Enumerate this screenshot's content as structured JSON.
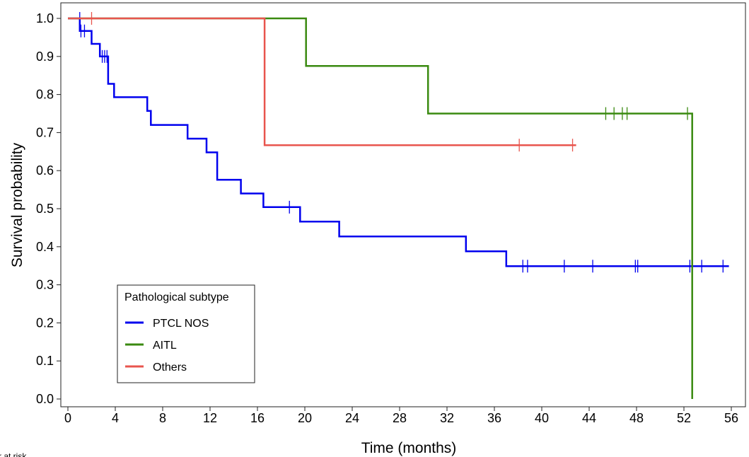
{
  "chart_data": {
    "type": "line",
    "subtype": "kaplan-meier",
    "title": "",
    "xlabel": "Time (months)",
    "ylabel": "Survival probability",
    "xlim": [
      0,
      56
    ],
    "ylim": [
      0,
      1
    ],
    "xticks": [
      "0",
      "4",
      "8",
      "12",
      "16",
      "20",
      "24",
      "28",
      "32",
      "36",
      "40",
      "44",
      "48",
      "52",
      "56"
    ],
    "yticks": [
      "0.0",
      "0.1",
      "0.2",
      "0.3",
      "0.4",
      "0.5",
      "0.6",
      "0.7",
      "0.8",
      "0.9",
      "1.0"
    ],
    "grid": false,
    "legend": {
      "title": "Pathological subtype",
      "placement": "bottom-left"
    },
    "footnote": "r at risk",
    "series": [
      {
        "name": "PTCL NOS",
        "color": "#0000ee",
        "steps": [
          [
            0,
            1.0
          ],
          [
            1.0,
            1.0
          ],
          [
            1.0,
            0.967
          ],
          [
            2.0,
            0.967
          ],
          [
            2.0,
            0.933
          ],
          [
            2.7,
            0.933
          ],
          [
            2.7,
            0.9
          ],
          [
            3.4,
            0.9
          ],
          [
            3.4,
            0.828
          ],
          [
            3.9,
            0.828
          ],
          [
            3.9,
            0.793
          ],
          [
            6.7,
            0.793
          ],
          [
            6.7,
            0.757
          ],
          [
            7.0,
            0.757
          ],
          [
            7.0,
            0.72
          ],
          [
            10.1,
            0.72
          ],
          [
            10.1,
            0.684
          ],
          [
            11.7,
            0.684
          ],
          [
            11.7,
            0.648
          ],
          [
            12.6,
            0.648
          ],
          [
            12.6,
            0.576
          ],
          [
            14.6,
            0.576
          ],
          [
            14.6,
            0.54
          ],
          [
            16.5,
            0.54
          ],
          [
            16.5,
            0.504
          ],
          [
            19.6,
            0.504
          ],
          [
            19.6,
            0.466
          ],
          [
            22.9,
            0.466
          ],
          [
            22.9,
            0.427
          ],
          [
            33.6,
            0.427
          ],
          [
            33.6,
            0.388
          ],
          [
            37.0,
            0.388
          ],
          [
            37.0,
            0.349
          ],
          [
            55.8,
            0.349
          ]
        ],
        "censored": [
          [
            1.0,
            1.0
          ],
          [
            1.1,
            0.967
          ],
          [
            1.4,
            0.967
          ],
          [
            2.9,
            0.9
          ],
          [
            3.1,
            0.9
          ],
          [
            3.3,
            0.9
          ],
          [
            18.7,
            0.504
          ],
          [
            38.4,
            0.349
          ],
          [
            38.8,
            0.349
          ],
          [
            41.9,
            0.349
          ],
          [
            44.3,
            0.349
          ],
          [
            47.9,
            0.349
          ],
          [
            48.1,
            0.349
          ],
          [
            52.5,
            0.349
          ],
          [
            53.5,
            0.349
          ],
          [
            55.3,
            0.349
          ]
        ]
      },
      {
        "name": "AITL",
        "color": "#3a8a10",
        "steps": [
          [
            0,
            1.0
          ],
          [
            20.1,
            1.0
          ],
          [
            20.1,
            0.875
          ],
          [
            30.4,
            0.875
          ],
          [
            30.4,
            0.75
          ],
          [
            52.7,
            0.75
          ],
          [
            52.7,
            0.0
          ]
        ],
        "censored": [
          [
            45.4,
            0.75
          ],
          [
            46.1,
            0.75
          ],
          [
            46.8,
            0.75
          ],
          [
            47.2,
            0.75
          ],
          [
            52.3,
            0.75
          ]
        ]
      },
      {
        "name": "Others",
        "color": "#e8554e",
        "steps": [
          [
            0,
            1.0
          ],
          [
            16.6,
            1.0
          ],
          [
            16.6,
            0.667
          ],
          [
            42.9,
            0.667
          ]
        ],
        "censored": [
          [
            2.0,
            1.0
          ],
          [
            38.1,
            0.667
          ],
          [
            42.6,
            0.667
          ]
        ]
      }
    ]
  }
}
